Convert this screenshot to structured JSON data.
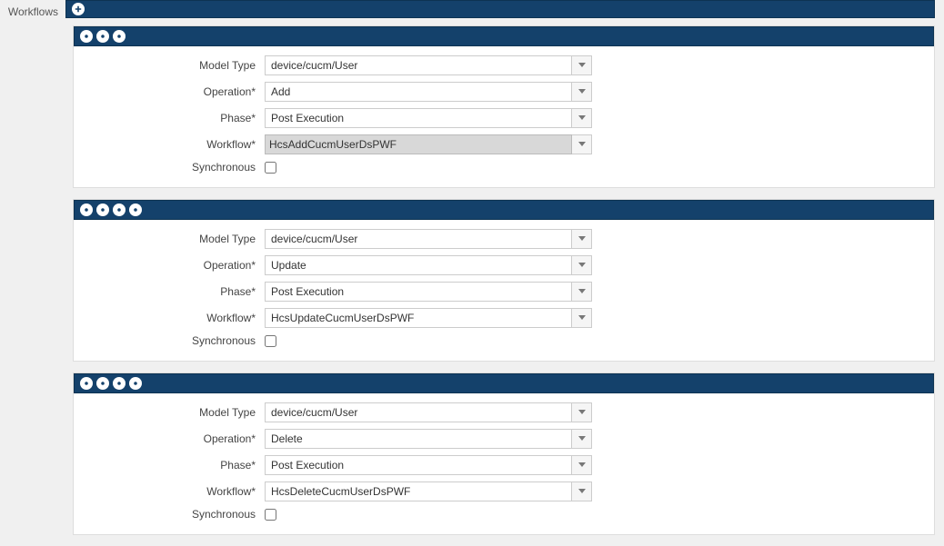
{
  "sidebar": {
    "label": "Workflows"
  },
  "colors": {
    "bar_bg": "#14416b",
    "bar_border": "#0d3352",
    "circle_bg": "#ffffff",
    "page_bg": "#f0f0f0",
    "section_bg": "#ffffff",
    "border": "#cccccc",
    "text": "#333333"
  },
  "labels": {
    "model_type": "Model Type",
    "operation": "Operation*",
    "phase": "Phase*",
    "workflow": "Workflow*",
    "synchronous": "Synchronous"
  },
  "sections": [
    {
      "circle_count": 3,
      "model_type": "device/cucm/User",
      "operation": "Add",
      "phase": "Post Execution",
      "workflow": "HcsAddCucmUserDsPWF",
      "workflow_highlight": true,
      "synchronous": false
    },
    {
      "circle_count": 4,
      "model_type": "device/cucm/User",
      "operation": "Update",
      "phase": "Post Execution",
      "workflow": "HcsUpdateCucmUserDsPWF",
      "workflow_highlight": false,
      "synchronous": false
    },
    {
      "circle_count": 4,
      "model_type": "device/cucm/User",
      "operation": "Delete",
      "phase": "Post Execution",
      "workflow": "HcsDeleteCucmUserDsPWF",
      "workflow_highlight": false,
      "synchronous": false
    }
  ]
}
